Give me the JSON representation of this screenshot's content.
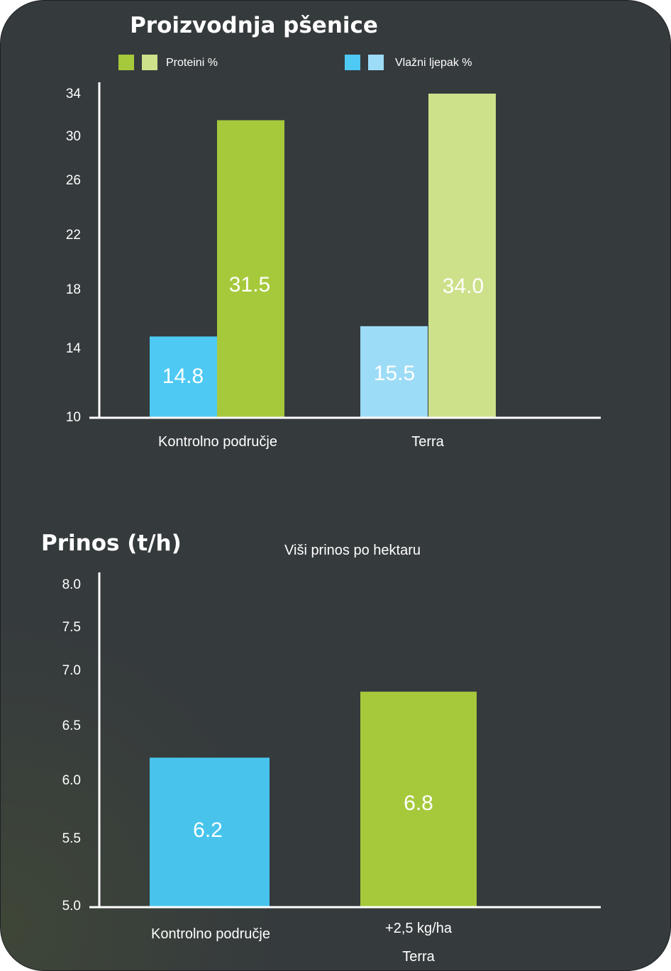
{
  "chart_data": [
    {
      "type": "bar",
      "title": "Proizvodnja pšenice",
      "categories": [
        "Kontrolno područje",
        "Terra"
      ],
      "legend": [
        {
          "name": "Proteini %",
          "colors": [
            "#a6c93c",
            "#cde08a"
          ]
        },
        {
          "name": "Vlažni ljepak %",
          "colors": [
            "#4ec9f3",
            "#9ddcf6"
          ]
        }
      ],
      "series": [
        {
          "name": "Vlažni ljepak %",
          "values": [
            14.8,
            15.5
          ],
          "labels": [
            "14.8",
            "15.5"
          ],
          "colors": [
            "#4ec9f3",
            "#9ddcf6"
          ]
        },
        {
          "name": "Proteini %",
          "values": [
            31.5,
            34.0
          ],
          "labels": [
            "31.5",
            "34.0"
          ],
          "colors": [
            "#a6c93c",
            "#cde08a"
          ]
        }
      ],
      "yticks": [
        "10",
        "14",
        "18",
        "22",
        "26",
        "30",
        "34"
      ],
      "ylim": [
        10,
        34
      ],
      "grid": false,
      "legend_position": "top"
    },
    {
      "type": "bar",
      "title": "Prinos (t/h)",
      "subtitle": "Viši prinos po hektaru",
      "categories": [
        "Kontrolno područje",
        "Terra"
      ],
      "category_notes": [
        "",
        "+2,5 kg/ha"
      ],
      "series": [
        {
          "values": [
            6.2,
            6.8
          ],
          "labels": [
            "6.2",
            "6.8"
          ],
          "colors": [
            "#48c4ec",
            "#a6c93c"
          ]
        }
      ],
      "yticks": [
        "5.0",
        "5.5",
        "6.0",
        "6.5",
        "7.0",
        "7.5",
        "8.0"
      ],
      "ylim": [
        5.0,
        8.0
      ],
      "grid": false
    }
  ]
}
